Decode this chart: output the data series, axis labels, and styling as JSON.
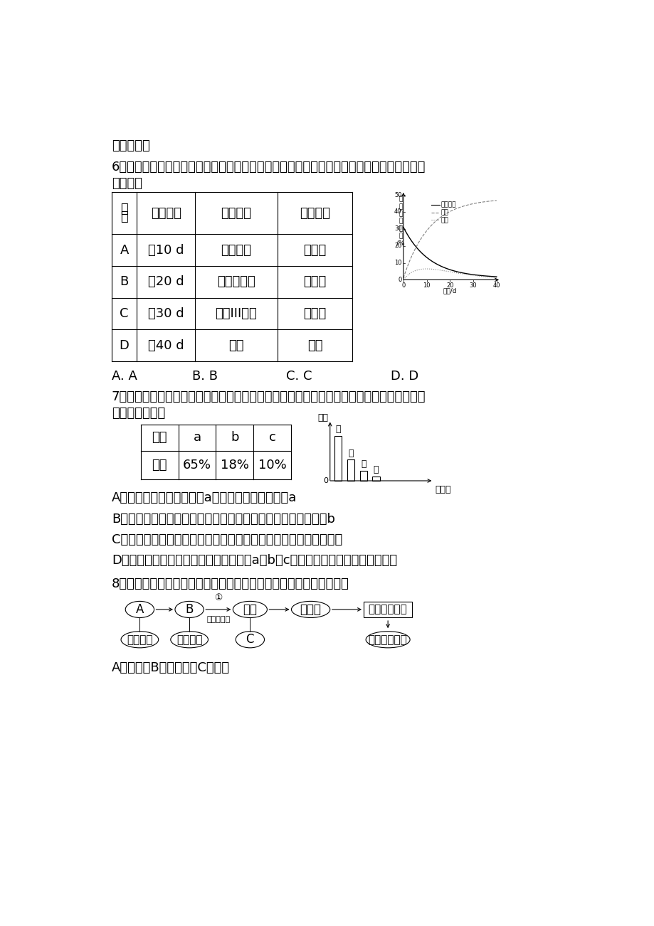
{
  "bg_color": "#ffffff",
  "text_intro": "完全归纳法",
  "q6_text1": "6．油菜种子成熟过程中部分有机物的变化如下图所示。检测不同成熟阶段的种子匀浆，结果",
  "q6_text2": "正确的是",
  "table6_headers": [
    "选\n项",
    "取样时间",
    "检测试剂",
    "检测结果"
  ],
  "table6_rows": [
    [
      "A",
      "第10 d",
      "斐林试剂",
      "不显色"
    ],
    [
      "B",
      "第20 d",
      "双缩脲试剂",
      "不显色"
    ],
    [
      "C",
      "第30 d",
      "苏丹III染液",
      "橘黄色"
    ],
    [
      "D",
      "第40 d",
      "碘液",
      "蓝色"
    ]
  ],
  "q7_text1": "7．下表是有活性的某植物细胞中的元素含量，下图是该植物细胞中化合物含量的柱形图。下",
  "q7_text2": "列说法正确的是",
  "table7_headers": [
    "元素",
    "a",
    "b",
    "c"
  ],
  "table7_row": [
    "含量",
    "65%",
    "18%",
    "10%"
  ],
  "q7_options": [
    "A．表中含量最多的元素是a，数量最多的元素也是a",
    "B．若图表示细胞鲜重，则甲化合物中含量最多的元素为表中的b",
    "C．若图表示细胞完全脱水后的化合物含量，则甲化合物应为蛋白质",
    "D．若表是组成人体细胞的元素含量，则a、b、c的含量和植物细胞中的完全相同"
  ],
  "q8_text": "8．下图表示有关蛋白质分子的简要概念图，下列对图示分析正确的是",
  "q8_option": "A．多肽中B的数目等于C的数目"
}
